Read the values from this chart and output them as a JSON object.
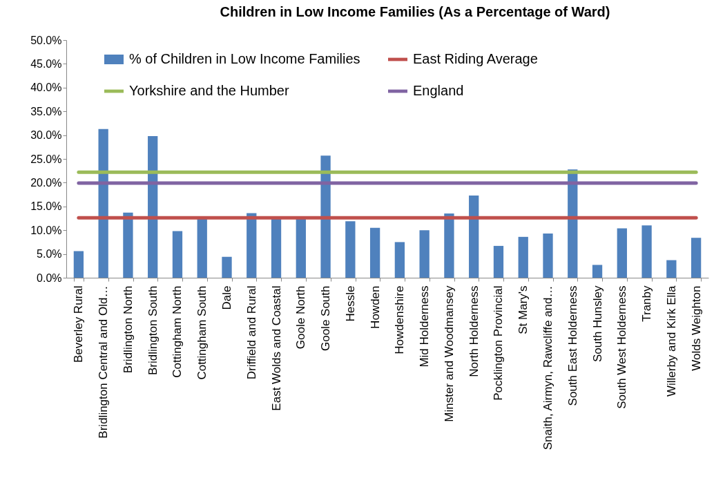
{
  "chart_data": {
    "type": "bar",
    "title": "Children in Low Income Families (As a Percentage of Ward)",
    "categories": [
      "Beverley Rural",
      "Bridlington Central and Old…",
      "Bridlington North",
      "Bridlington South",
      "Cottingham North",
      "Cottingham South",
      "Dale",
      "Driffield and Rural",
      "East Wolds and Coastal",
      "Goole North",
      "Goole South",
      "Hessle",
      "Howden",
      "Howdenshire",
      "Mid Holderness",
      "Minster and Woodmansey",
      "North Holderness",
      "Pocklington Provincial",
      "St Mary's",
      "Snaith, Airmyn, Rawcliffe and…",
      "South East Holderness",
      "South Hunsley",
      "South West Holderness",
      "Tranby",
      "Willerby and Kirk Ella",
      "Wolds Weighton"
    ],
    "series": [
      {
        "name": "% of Children in Low Income Families",
        "color": "#4f81bd",
        "values": [
          5.6,
          31.3,
          13.7,
          29.8,
          9.8,
          12.5,
          4.4,
          13.6,
          12.6,
          12.5,
          25.7,
          11.9,
          10.5,
          7.5,
          10.0,
          13.5,
          17.3,
          6.7,
          8.6,
          9.3,
          22.8,
          2.7,
          10.4,
          11.0,
          3.7,
          8.4
        ]
      },
      {
        "name": "East Riding Average",
        "type": "line",
        "color": "#c0504d",
        "values": [
          12.6,
          12.6,
          12.6,
          12.6,
          12.6,
          12.6,
          12.6,
          12.6,
          12.6,
          12.6,
          12.6,
          12.6,
          12.6,
          12.6,
          12.6,
          12.6,
          12.6,
          12.6,
          12.6,
          12.6,
          12.6,
          12.6,
          12.6,
          12.6,
          12.6,
          12.6
        ]
      },
      {
        "name": "Yorkshire and the Humber",
        "type": "line",
        "color": "#9bbb59",
        "values": [
          22.2,
          22.2,
          22.2,
          22.2,
          22.2,
          22.2,
          22.2,
          22.2,
          22.2,
          22.2,
          22.2,
          22.2,
          22.2,
          22.2,
          22.2,
          22.2,
          22.2,
          22.2,
          22.2,
          22.2,
          22.2,
          22.2,
          22.2,
          22.2,
          22.2,
          22.2
        ]
      },
      {
        "name": "England",
        "type": "line",
        "color": "#8064a2",
        "values": [
          19.9,
          19.9,
          19.9,
          19.9,
          19.9,
          19.9,
          19.9,
          19.9,
          19.9,
          19.9,
          19.9,
          19.9,
          19.9,
          19.9,
          19.9,
          19.9,
          19.9,
          19.9,
          19.9,
          19.9,
          19.9,
          19.9,
          19.9,
          19.9,
          19.9,
          19.9
        ]
      }
    ],
    "ylim": [
      0,
      50
    ],
    "yticks": [
      {
        "value": 0,
        "label": "0.0%"
      },
      {
        "value": 5,
        "label": "5.0%"
      },
      {
        "value": 10,
        "label": "10.0%"
      },
      {
        "value": 15,
        "label": "15.0%"
      },
      {
        "value": 20,
        "label": "20.0%"
      },
      {
        "value": 25,
        "label": "25.0%"
      },
      {
        "value": 30,
        "label": "30.0%"
      },
      {
        "value": 35,
        "label": "35.0%"
      },
      {
        "value": 40,
        "label": "40.0%"
      },
      {
        "value": 45,
        "label": "45.0%"
      },
      {
        "value": 50,
        "label": "50.0%"
      }
    ],
    "grid": false,
    "legend": "top"
  }
}
